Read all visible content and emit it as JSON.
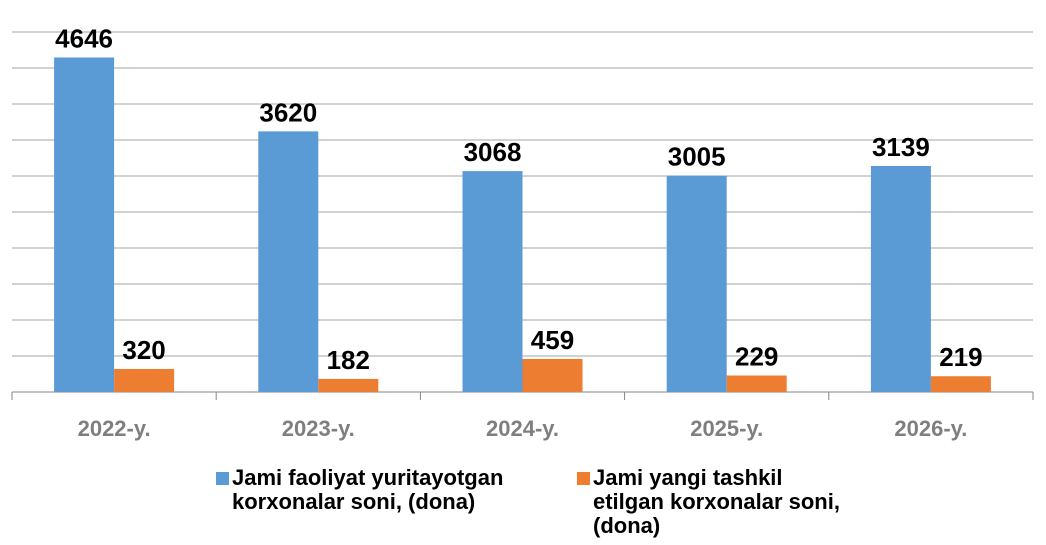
{
  "chart_data": {
    "type": "bar",
    "categories": [
      "2022-y.",
      "2023-y.",
      "2024-y.",
      "2025-y.",
      "2026-y."
    ],
    "series": [
      {
        "name": "Jami faoliyat yuritayotgan korxonalar soni, (dona)",
        "color": "#5b9bd5",
        "values": [
          4646,
          3620,
          3068,
          3005,
          3139
        ]
      },
      {
        "name": "Jami yangi tashkil etilgan korxonalar soni, (dona)",
        "color": "#ed7d31",
        "values": [
          320,
          182,
          459,
          229,
          219
        ]
      }
    ],
    "ylim": [
      0,
      5000
    ],
    "yticks": [
      0,
      500,
      1000,
      1500,
      2000,
      2500,
      3000,
      3500,
      4000,
      4500,
      5000
    ],
    "grid": true,
    "legend": "bottom"
  }
}
